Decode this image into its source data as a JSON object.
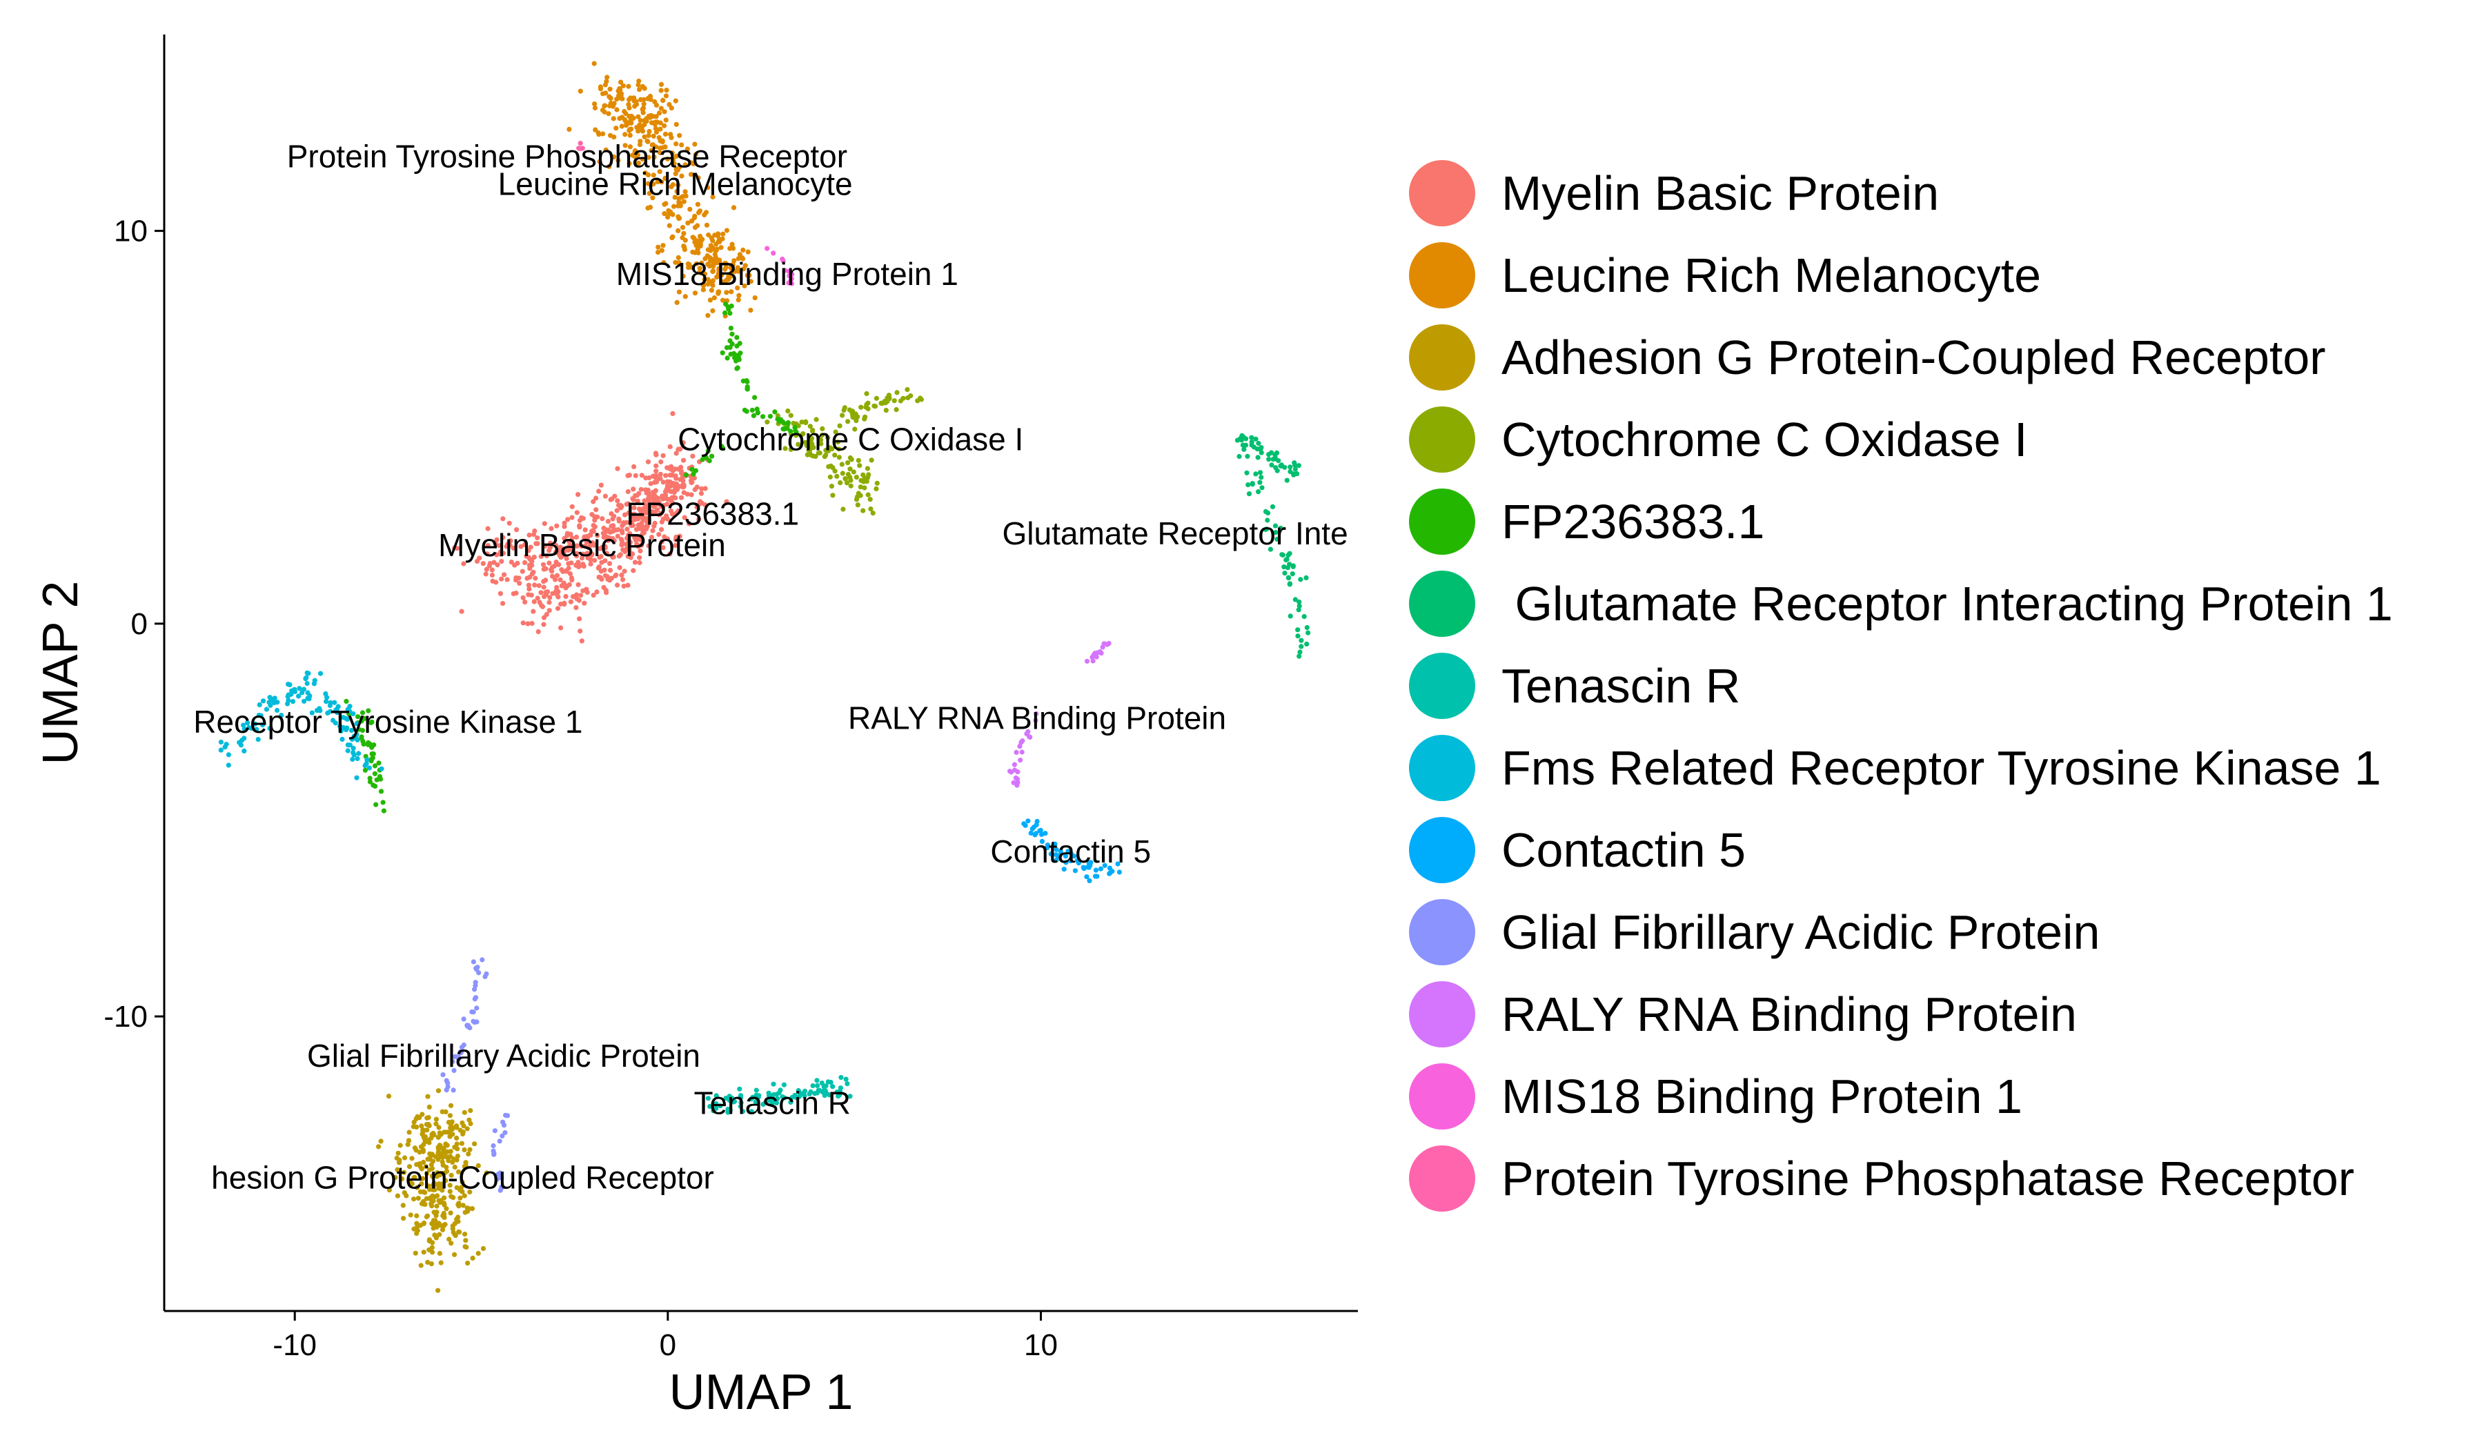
{
  "chart_data": {
    "type": "scatter",
    "xlabel": "UMAP 1",
    "ylabel": "UMAP 2",
    "xlim": [
      -13.5,
      18.5
    ],
    "ylim": [
      -17.5,
      15.0
    ],
    "x_ticks": [
      -10,
      0,
      10
    ],
    "x_tick_labels": [
      "-10",
      "0",
      "10"
    ],
    "y_ticks": [
      10,
      0,
      -10
    ],
    "y_tick_labels": [
      "10",
      "0",
      "-10"
    ],
    "grid": false,
    "legend_position": "right",
    "series": [
      {
        "name": "Myelin Basic Protein",
        "color": "#F8766D"
      },
      {
        "name": "Leucine Rich Melanocyte",
        "color": "#E18A00"
      },
      {
        "name": "Adhesion G Protein-Coupled Receptor",
        "color": "#BE9C00"
      },
      {
        "name": "Cytochrome C Oxidase I",
        "color": "#8CAB00"
      },
      {
        "name": "FP236383.1",
        "color": "#24B700"
      },
      {
        "name": " Glutamate Receptor Interacting Protein 1",
        "color": "#00BE70"
      },
      {
        "name": "Tenascin R",
        "color": "#00C1AB"
      },
      {
        "name": "Fms Related Receptor Tyrosine Kinase 1",
        "color": "#00BBDA"
      },
      {
        "name": "Contactin 5",
        "color": "#00ACFC"
      },
      {
        "name": "Glial Fibrillary Acidic Protein",
        "color": "#8B93FF"
      },
      {
        "name": "RALY RNA Binding Protein",
        "color": "#D575FE"
      },
      {
        "name": "MIS18 Binding Protein 1",
        "color": "#F962DD"
      },
      {
        "name": "Protein Tyrosine Phosphatase Receptor",
        "color": "#FF65AC"
      }
    ],
    "clusters": [
      {
        "series": 0,
        "shapes": [
          {
            "pts": [
              [
                -5,
                1.4
              ],
              [
                -2,
                2.3
              ],
              [
                0.5,
                3.8
              ],
              [
                -1,
                2.2
              ],
              [
                -3.5,
                0.5
              ]
            ],
            "w": 1.0,
            "n": 620
          }
        ]
      },
      {
        "series": 1,
        "shapes": [
          {
            "pts": [
              [
                -1.5,
                13.5
              ],
              [
                -0.5,
                12.5
              ],
              [
                0.8,
                9.5
              ],
              [
                1.6,
                8.8
              ]
            ],
            "w": 1.0,
            "n": 420
          }
        ]
      },
      {
        "series": 2,
        "shapes": [
          {
            "pts": [
              [
                -6.2,
                -12.8
              ],
              [
                -6.2,
                -14.2
              ],
              [
                -6.1,
                -15.8
              ]
            ],
            "w": 1.1,
            "n": 320
          }
        ]
      },
      {
        "series": 3,
        "shapes": [
          {
            "pts": [
              [
                3.2,
                5.2
              ],
              [
                4.6,
                4.2
              ],
              [
                5.4,
                3.2
              ]
            ],
            "w": 0.6,
            "n": 110
          },
          {
            "pts": [
              [
                4.6,
                5.2
              ],
              [
                6.6,
                5.9
              ]
            ],
            "w": 0.35,
            "n": 50
          }
        ]
      },
      {
        "series": 4,
        "shapes": [
          {
            "pts": [
              [
                1.6,
                8.3
              ],
              [
                1.8,
                6.5
              ],
              [
                2.4,
                5.4
              ],
              [
                3.4,
                5.0
              ]
            ],
            "w": 0.25,
            "n": 60
          },
          {
            "pts": [
              [
                -8.4,
                -2.0
              ],
              [
                -7.9,
                -3.4
              ],
              [
                -7.7,
                -4.6
              ]
            ],
            "w": 0.25,
            "n": 45
          },
          {
            "pts": [
              [
                0.5,
                3.8
              ],
              [
                1.6,
                4.6
              ]
            ],
            "w": 0.2,
            "n": 12
          }
        ]
      },
      {
        "series": 5,
        "shapes": [
          {
            "pts": [
              [
                15.4,
                4.7
              ],
              [
                16.2,
                4.2
              ],
              [
                16.9,
                3.7
              ]
            ],
            "w": 0.25,
            "n": 45
          },
          {
            "pts": [
              [
                15.4,
                4.6
              ],
              [
                16.0,
                3.0
              ],
              [
                16.6,
                1.5
              ],
              [
                16.9,
                0.5
              ],
              [
                17.0,
                -0.8
              ]
            ],
            "w": 0.25,
            "n": 60
          }
        ]
      },
      {
        "series": 6,
        "shapes": [
          {
            "pts": [
              [
                1.2,
                -12.3
              ],
              [
                3,
                -12.0
              ],
              [
                4.7,
                -11.8
              ]
            ],
            "w": 0.3,
            "n": 90
          }
        ]
      },
      {
        "series": 7,
        "shapes": [
          {
            "pts": [
              [
                -12,
                -3.4
              ],
              [
                -10.8,
                -2.3
              ],
              [
                -9.6,
                -1.5
              ],
              [
                -8.6,
                -2.6
              ],
              [
                -8.2,
                -3.8
              ]
            ],
            "w": 0.4,
            "n": 120
          }
        ]
      },
      {
        "series": 8,
        "shapes": [
          {
            "pts": [
              [
                9.5,
                -5.0
              ],
              [
                10.4,
                -5.8
              ],
              [
                11.4,
                -6.3
              ],
              [
                12.0,
                -6.2
              ]
            ],
            "w": 0.3,
            "n": 55
          }
        ]
      },
      {
        "series": 9,
        "shapes": [
          {
            "pts": [
              [
                -5.0,
                -8.6
              ],
              [
                -5.4,
                -10.5
              ],
              [
                -6.0,
                -12.2
              ]
            ],
            "w": 0.18,
            "n": 40
          },
          {
            "pts": [
              [
                -4.3,
                -12.5
              ],
              [
                -4.7,
                -13.3
              ],
              [
                -4.4,
                -14.4
              ]
            ],
            "w": 0.15,
            "n": 20
          }
        ]
      },
      {
        "series": 10,
        "shapes": [
          {
            "pts": [
              [
                11.8,
                -0.5
              ],
              [
                11.2,
                -1.0
              ]
            ],
            "w": 0.12,
            "n": 15
          },
          {
            "pts": [
              [
                9.9,
                -2.2
              ],
              [
                9.3,
                -3.6
              ],
              [
                9.4,
                -4.2
              ]
            ],
            "w": 0.15,
            "n": 22
          }
        ]
      },
      {
        "series": 11,
        "shapes": [
          {
            "pts": [
              [
                2.6,
                9.6
              ],
              [
                3.2,
                9.0
              ],
              [
                3.4,
                8.5
              ]
            ],
            "w": 0.15,
            "n": 12
          }
        ]
      },
      {
        "series": 12,
        "shapes": [
          {
            "pts": [
              [
                -2.2,
                11.9
              ],
              [
                -2.4,
                12.2
              ]
            ],
            "w": 0.08,
            "n": 4
          }
        ]
      }
    ],
    "annotations": [
      {
        "text": "Protein Tyrosine Phosphatase Receptor",
        "x": -2.7,
        "y": 11.9
      },
      {
        "text": "Leucine Rich Melanocyte",
        "x": 0.2,
        "y": 11.2
      },
      {
        "text": "MIS18 Binding Protein 1",
        "x": 3.2,
        "y": 8.9
      },
      {
        "text": "Cytochrome C Oxidase I",
        "x": 4.9,
        "y": 4.7
      },
      {
        "text": "FP236383.1",
        "x": 1.2,
        "y": 2.8
      },
      {
        "text": "Myelin Basic Protein",
        "x": -2.3,
        "y": 2.0
      },
      {
        "text": "Glutamate Receptor Inte",
        "x": 13.6,
        "y": 2.3
      },
      {
        "text": "Receptor Tyrosine Kinase 1",
        "x": -7.5,
        "y": -2.5
      },
      {
        "text": "RALY RNA Binding Protein",
        "x": 9.9,
        "y": -2.4
      },
      {
        "text": "Contactin 5",
        "x": 10.8,
        "y": -5.8
      },
      {
        "text": "Glial Fibrillary Acidic Protein",
        "x": -4.4,
        "y": -11.0
      },
      {
        "text": "Tenascin R",
        "x": 2.8,
        "y": -12.2
      },
      {
        "text": "hesion G Protein-Coupled Receptor",
        "x": -5.5,
        "y": -14.1
      }
    ]
  }
}
